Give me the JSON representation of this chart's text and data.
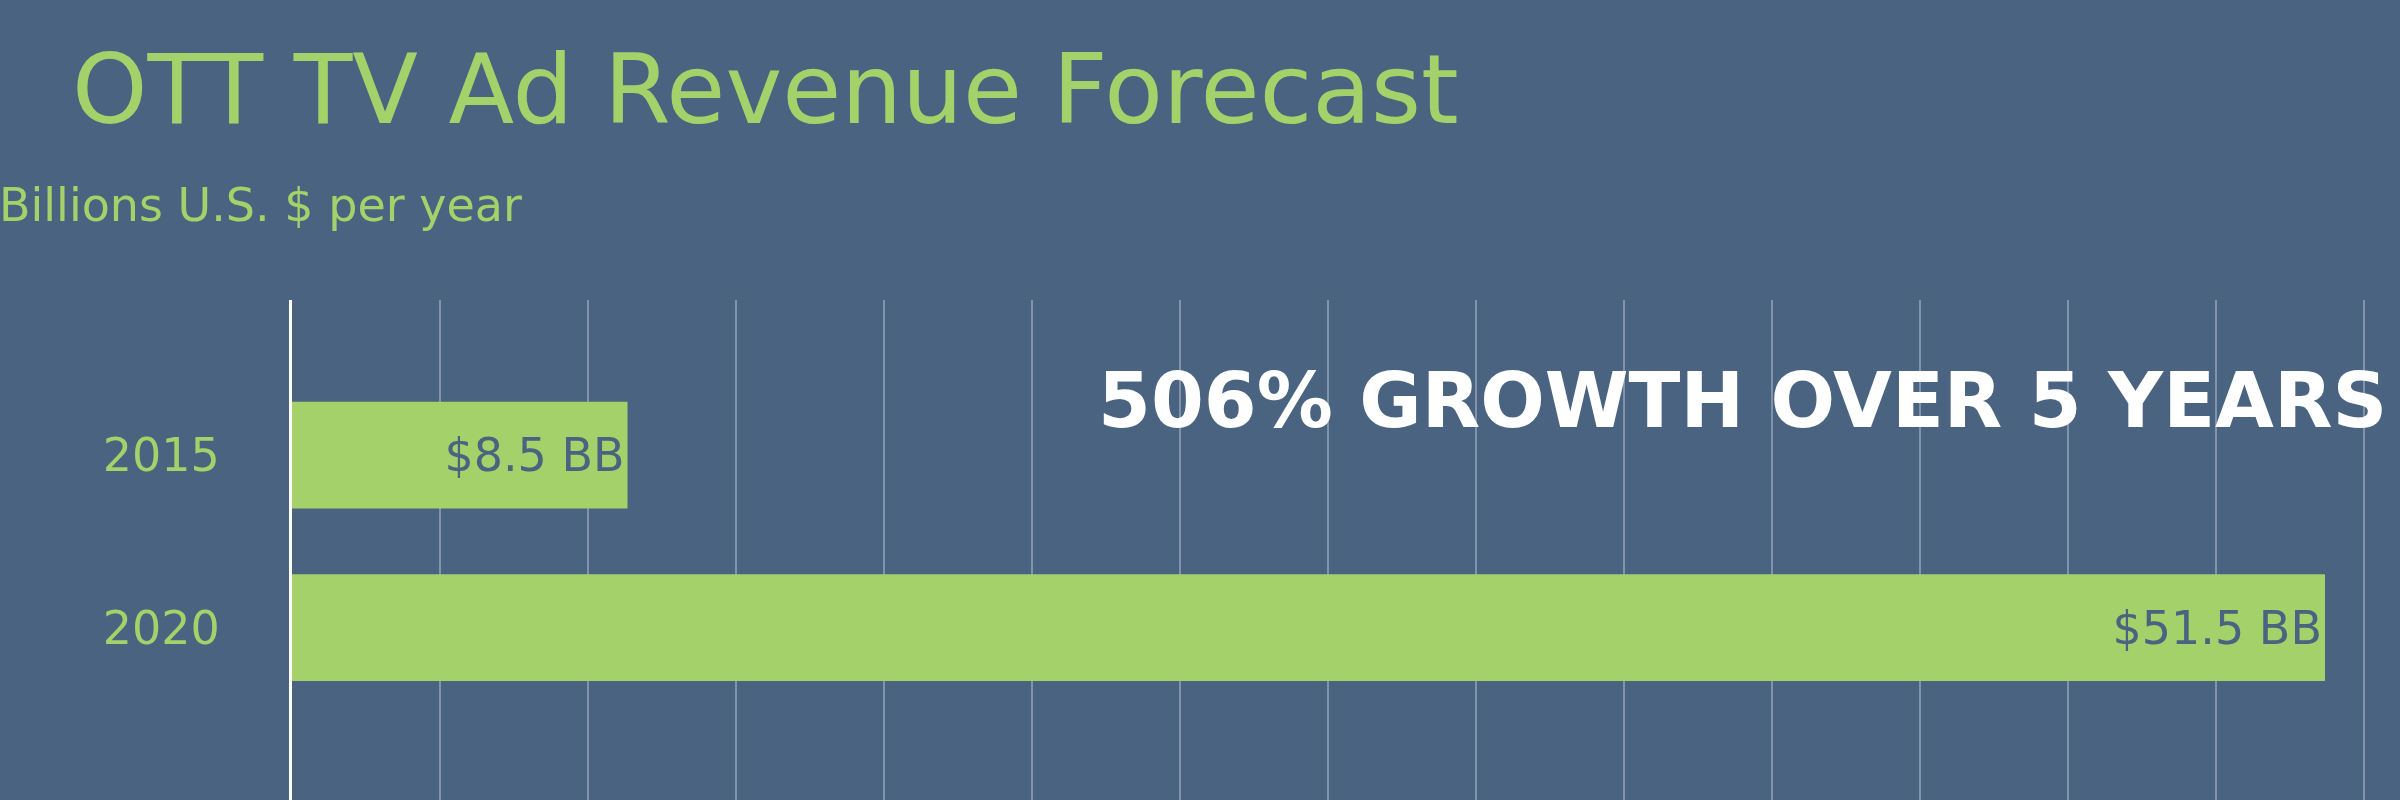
{
  "chart_data": {
    "type": "bar",
    "orientation": "horizontal",
    "title": "OTT TV Ad Revenue Forecast",
    "subtitle": "Billions U.S. $ per year",
    "categories": [
      "2015",
      "2020"
    ],
    "values": [
      8.5,
      51.5
    ],
    "value_labels": [
      "$8.5 BB",
      "$51.5 BB"
    ],
    "color": "#a5d16a",
    "xlim": [
      0,
      53.4
    ],
    "xticks": [
      {
        "value": 3.75,
        "label": null
      },
      {
        "value": 7.5,
        "label": null
      },
      {
        "value": 11.25,
        "label": null
      },
      {
        "value": 15,
        "label": null
      },
      {
        "value": 18.75,
        "label": null
      },
      {
        "value": 22.5,
        "label": null
      },
      {
        "value": 26.25,
        "label": null
      },
      {
        "value": 30,
        "label": null
      },
      {
        "value": 33.75,
        "label": null
      },
      {
        "value": 37.5,
        "label": null
      },
      {
        "value": 41.25,
        "label": null
      },
      {
        "value": 45,
        "label": null
      },
      {
        "value": 48.75,
        "label": null
      },
      {
        "value": 52.5,
        "label": null
      }
    ],
    "grid": "x",
    "tick_labels": "y",
    "annotations": [
      "506% GROWTH OVER 5 YEARS"
    ]
  }
}
